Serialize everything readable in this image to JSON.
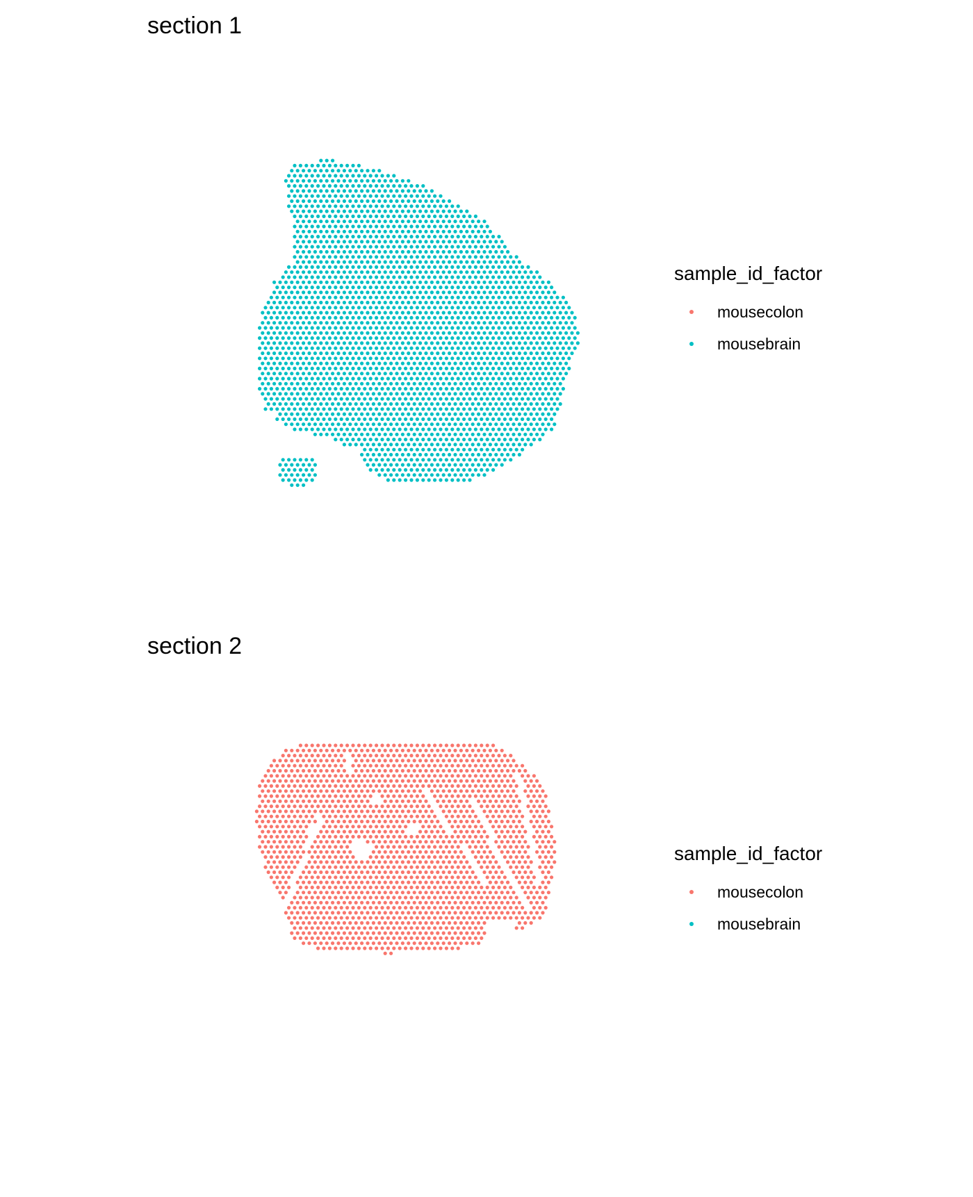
{
  "chart_data": [
    {
      "type": "scatter",
      "title": "section 1",
      "point_color": "#00BFC4",
      "point_sample": "mousebrain",
      "legend": {
        "title": "sample_id_factor",
        "position": "right",
        "entries": [
          {
            "label": "mousecolon",
            "color": "#F8766D"
          },
          {
            "label": "mousebrain",
            "color": "#00BFC4"
          }
        ]
      }
    },
    {
      "type": "scatter",
      "title": "section 2",
      "point_color": "#F8766D",
      "point_sample": "mousecolon",
      "legend": {
        "title": "sample_id_factor",
        "position": "right",
        "entries": [
          {
            "label": "mousecolon",
            "color": "#F8766D"
          },
          {
            "label": "mousebrain",
            "color": "#00BFC4"
          }
        ]
      }
    }
  ]
}
